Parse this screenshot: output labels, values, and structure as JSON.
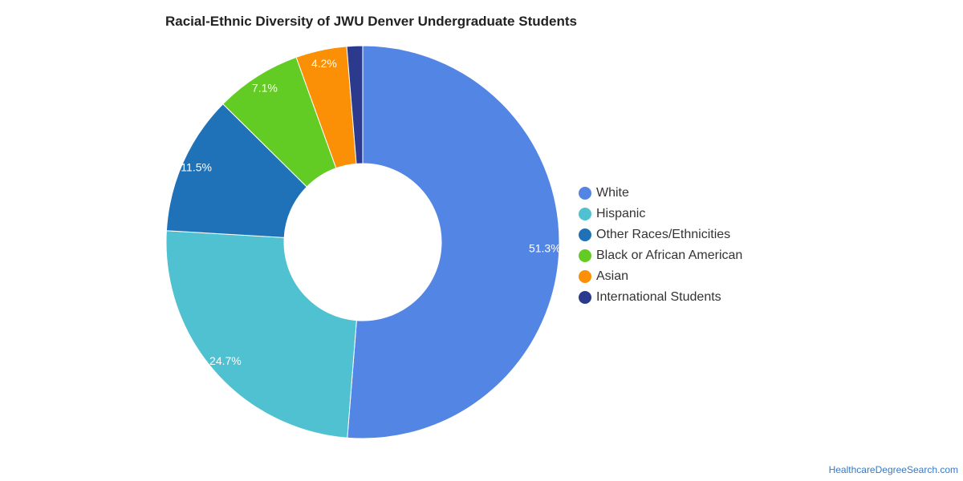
{
  "chart_data": {
    "type": "pie",
    "donut": true,
    "title": "Racial-Ethnic Diversity of JWU Denver Undergraduate Students",
    "legend_position": "right",
    "slices": [
      {
        "name": "White",
        "value": 51.3,
        "label": "51.3%",
        "color": "#5386e4"
      },
      {
        "name": "Hispanic",
        "value": 24.7,
        "label": "24.7%",
        "color": "#4fc1d0"
      },
      {
        "name": "Other Races/Ethnicities",
        "value": 11.5,
        "label": "11.5%",
        "color": "#1f72b8"
      },
      {
        "name": "Black or African American",
        "value": 7.1,
        "label": "7.1%",
        "color": "#62cc24"
      },
      {
        "name": "Asian",
        "value": 4.2,
        "label": "4.2%",
        "color": "#fb8f05"
      },
      {
        "name": "International Students",
        "value": 1.3,
        "label": "",
        "color": "#2b3a8c"
      }
    ]
  },
  "footer": {
    "source": "HealthcareDegreeSearch.com"
  }
}
